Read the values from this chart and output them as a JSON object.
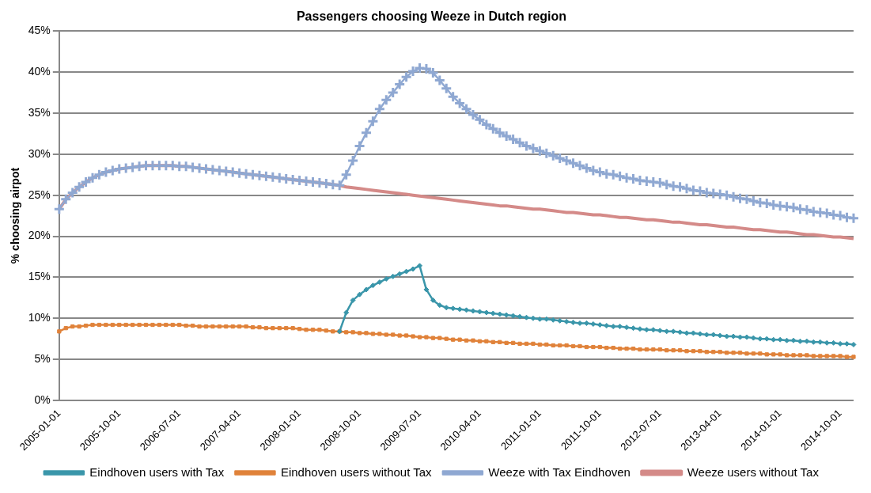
{
  "chart_data": {
    "type": "line",
    "title": "Passengers choosing Weeze in Dutch region",
    "ylabel": "% choosing airpot",
    "categories": [
      "2005-01-01",
      null,
      null,
      null,
      null,
      null,
      null,
      null,
      null,
      "2005-10-01",
      null,
      null,
      null,
      null,
      null,
      null,
      null,
      null,
      "2006-07-01",
      null,
      null,
      null,
      null,
      null,
      null,
      null,
      null,
      "2007-04-01",
      null,
      null,
      null,
      null,
      null,
      null,
      null,
      null,
      "2008-01-01",
      null,
      null,
      null,
      null,
      null,
      null,
      null,
      null,
      "2008-10-01",
      null,
      null,
      null,
      null,
      null,
      null,
      null,
      null,
      "2009-07-01",
      null,
      null,
      null,
      null,
      null,
      null,
      null,
      null,
      "2010-04-01",
      null,
      null,
      null,
      null,
      null,
      null,
      null,
      null,
      "2011-01-01",
      null,
      null,
      null,
      null,
      null,
      null,
      null,
      null,
      "2011-10-01",
      null,
      null,
      null,
      null,
      null,
      null,
      null,
      null,
      "2012-07-01",
      null,
      null,
      null,
      null,
      null,
      null,
      null,
      null,
      "2013-04-01",
      null,
      null,
      null,
      null,
      null,
      null,
      null,
      null,
      "2014-01-01",
      null,
      null,
      null,
      null,
      null,
      null,
      null,
      null,
      "2014-10-01",
      null,
      null
    ],
    "ylim": [
      0,
      45
    ],
    "yticks": [
      {
        "value": 0,
        "label": "0%"
      },
      {
        "value": 5,
        "label": "5%"
      },
      {
        "value": 10,
        "label": "10%"
      },
      {
        "value": 15,
        "label": "15%"
      },
      {
        "value": 20,
        "label": "20%"
      },
      {
        "value": 25,
        "label": "25%"
      },
      {
        "value": 30,
        "label": "30%"
      },
      {
        "value": 35,
        "label": "35%"
      },
      {
        "value": 40,
        "label": "40%"
      },
      {
        "value": 45,
        "label": "45%"
      }
    ],
    "grid": "y",
    "legend": "bottom",
    "series": [
      {
        "name": "Eindhoven users with Tax",
        "color": "#3a96aa",
        "marker": "diamond",
        "values": [
          null,
          null,
          null,
          null,
          null,
          null,
          null,
          null,
          null,
          null,
          null,
          null,
          null,
          null,
          null,
          null,
          null,
          null,
          null,
          null,
          null,
          null,
          null,
          null,
          null,
          null,
          null,
          null,
          null,
          null,
          null,
          null,
          null,
          null,
          null,
          null,
          null,
          null,
          null,
          null,
          null,
          null,
          8.4,
          10.7,
          12.2,
          12.9,
          13.5,
          14.0,
          14.4,
          14.8,
          15.1,
          15.4,
          15.7,
          16.0,
          16.4,
          13.5,
          12.2,
          11.6,
          11.3,
          11.2,
          11.1,
          11.0,
          10.9,
          10.8,
          10.7,
          10.6,
          10.5,
          10.4,
          10.3,
          10.2,
          10.1,
          10.0,
          9.9,
          9.9,
          9.8,
          9.7,
          9.6,
          9.5,
          9.4,
          9.4,
          9.3,
          9.2,
          9.1,
          9.0,
          9.0,
          8.9,
          8.8,
          8.7,
          8.6,
          8.6,
          8.5,
          8.4,
          8.4,
          8.3,
          8.2,
          8.2,
          8.1,
          8.0,
          8.0,
          7.9,
          7.8,
          7.8,
          7.7,
          7.7,
          7.6,
          7.5,
          7.5,
          7.4,
          7.4,
          7.3,
          7.3,
          7.2,
          7.2,
          7.1,
          7.1,
          7.0,
          7.0,
          6.9,
          6.9,
          6.8
        ]
      },
      {
        "name": "Eindhoven users without Tax",
        "color": "#e0823a",
        "marker": "square",
        "values": [
          8.4,
          8.8,
          9.0,
          9.0,
          9.1,
          9.2,
          9.2,
          9.2,
          9.2,
          9.2,
          9.2,
          9.2,
          9.2,
          9.2,
          9.2,
          9.2,
          9.2,
          9.2,
          9.2,
          9.1,
          9.1,
          9.0,
          9.0,
          9.0,
          9.0,
          9.0,
          9.0,
          9.0,
          9.0,
          8.9,
          8.9,
          8.8,
          8.8,
          8.8,
          8.8,
          8.8,
          8.7,
          8.6,
          8.6,
          8.6,
          8.5,
          8.4,
          8.4,
          8.3,
          8.3,
          8.2,
          8.2,
          8.1,
          8.1,
          8.0,
          8.0,
          7.9,
          7.9,
          7.8,
          7.7,
          7.7,
          7.6,
          7.6,
          7.5,
          7.4,
          7.4,
          7.3,
          7.3,
          7.2,
          7.2,
          7.1,
          7.1,
          7.0,
          7.0,
          6.9,
          6.9,
          6.9,
          6.8,
          6.8,
          6.7,
          6.7,
          6.7,
          6.6,
          6.6,
          6.5,
          6.5,
          6.5,
          6.4,
          6.4,
          6.3,
          6.3,
          6.3,
          6.2,
          6.2,
          6.2,
          6.2,
          6.1,
          6.1,
          6.1,
          6.0,
          6.0,
          6.0,
          5.9,
          5.9,
          5.9,
          5.8,
          5.8,
          5.8,
          5.7,
          5.7,
          5.7,
          5.6,
          5.6,
          5.6,
          5.5,
          5.5,
          5.5,
          5.5,
          5.4,
          5.4,
          5.4,
          5.4,
          5.4,
          5.3,
          5.3
        ]
      },
      {
        "name": "Weeze with Tax Eindhoven",
        "color": "#8fa8d2",
        "marker": "cross",
        "values": [
          23.3,
          24.5,
          25.3,
          26.0,
          26.6,
          27.1,
          27.5,
          27.8,
          28.0,
          28.2,
          28.3,
          28.4,
          28.5,
          28.6,
          28.6,
          28.6,
          28.6,
          28.6,
          28.5,
          28.5,
          28.4,
          28.3,
          28.2,
          28.1,
          28.0,
          27.9,
          27.8,
          27.7,
          27.6,
          27.5,
          27.4,
          27.3,
          27.2,
          27.1,
          27.0,
          26.9,
          26.8,
          26.7,
          26.6,
          26.5,
          26.4,
          26.3,
          26.2,
          27.5,
          29.2,
          31.0,
          32.6,
          34.0,
          35.5,
          36.6,
          37.5,
          38.5,
          39.4,
          40.1,
          40.5,
          40.4,
          39.9,
          39.0,
          38.0,
          37.0,
          36.2,
          35.5,
          34.8,
          34.2,
          33.6,
          33.1,
          32.6,
          32.2,
          31.8,
          31.4,
          31.0,
          30.7,
          30.4,
          30.1,
          29.8,
          29.5,
          29.2,
          28.9,
          28.6,
          28.3,
          28.0,
          27.8,
          27.6,
          27.5,
          27.3,
          27.1,
          27.0,
          26.8,
          26.7,
          26.6,
          26.5,
          26.3,
          26.1,
          26.0,
          25.8,
          25.6,
          25.5,
          25.3,
          25.2,
          25.1,
          25.0,
          24.8,
          24.6,
          24.5,
          24.3,
          24.1,
          24.0,
          23.8,
          23.7,
          23.6,
          23.5,
          23.3,
          23.2,
          23.0,
          22.9,
          22.8,
          22.6,
          22.5,
          22.3,
          22.2
        ]
      },
      {
        "name": "Weeze users without Tax",
        "color": "#d48a88",
        "marker": "none",
        "values": [
          23.3,
          24.5,
          25.3,
          26.0,
          26.6,
          27.1,
          27.5,
          27.8,
          28.0,
          28.2,
          28.3,
          28.4,
          28.5,
          28.6,
          28.6,
          28.6,
          28.6,
          28.6,
          28.5,
          28.5,
          28.4,
          28.3,
          28.2,
          28.1,
          28.0,
          27.9,
          27.8,
          27.7,
          27.6,
          27.5,
          27.4,
          27.3,
          27.2,
          27.1,
          27.0,
          26.9,
          26.8,
          26.7,
          26.6,
          26.5,
          26.4,
          26.3,
          26.2,
          26.0,
          25.9,
          25.8,
          25.7,
          25.6,
          25.5,
          25.4,
          25.3,
          25.2,
          25.1,
          25.0,
          24.9,
          24.8,
          24.7,
          24.6,
          24.5,
          24.4,
          24.3,
          24.2,
          24.1,
          24.0,
          23.9,
          23.8,
          23.7,
          23.7,
          23.6,
          23.5,
          23.4,
          23.3,
          23.3,
          23.2,
          23.1,
          23.0,
          22.9,
          22.9,
          22.8,
          22.7,
          22.6,
          22.6,
          22.5,
          22.4,
          22.3,
          22.3,
          22.2,
          22.1,
          22.0,
          22.0,
          21.9,
          21.8,
          21.7,
          21.7,
          21.6,
          21.5,
          21.4,
          21.4,
          21.3,
          21.2,
          21.1,
          21.1,
          21.0,
          20.9,
          20.8,
          20.8,
          20.7,
          20.6,
          20.5,
          20.5,
          20.4,
          20.3,
          20.2,
          20.2,
          20.1,
          20.0,
          19.9,
          19.9,
          19.8,
          19.7
        ]
      }
    ]
  }
}
